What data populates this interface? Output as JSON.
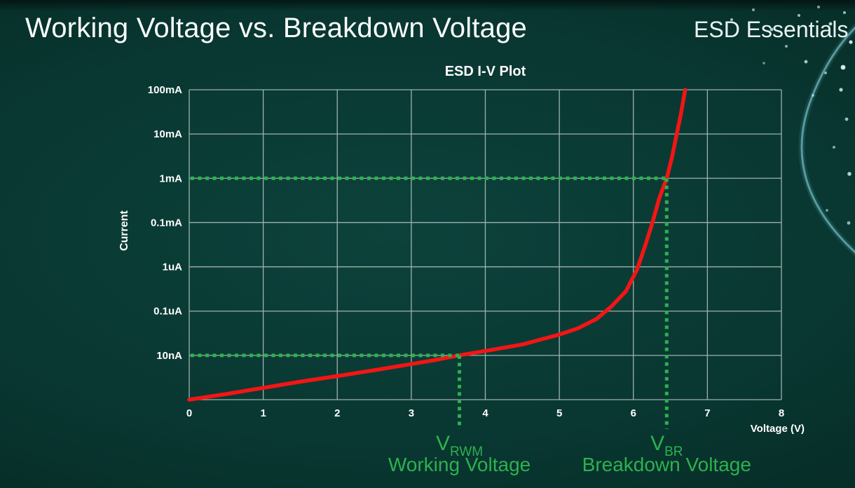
{
  "page": {
    "title": "Working Voltage vs. Breakdown Voltage",
    "brand": "ESD Essentials"
  },
  "colors": {
    "background": "#093731",
    "grid": "#c3d0ce",
    "curve_red": "#f31515",
    "annotation_green": "#2db14f",
    "text_white": "#ffffff"
  },
  "chart_data": {
    "type": "line",
    "title": "ESD I-V Plot",
    "xlabel": "Voltage (V)",
    "ylabel": "Current",
    "xlim": [
      0,
      8
    ],
    "x_ticks": [
      0,
      1,
      2,
      3,
      4,
      5,
      6,
      7,
      8
    ],
    "y_tick_labels": [
      "100mA",
      "10mA",
      "1mA",
      "0.1mA",
      "1uA",
      "0.1uA",
      "10nA"
    ],
    "yscale": "log decades equally spaced, bottom axis one decade below 10nA",
    "grid": true,
    "legend": "none",
    "series": [
      {
        "name": "ESD device I-V curve",
        "color": "#f31515",
        "points_note": "pairs of [voltage_V, fraction of plot height above bottom axis]",
        "points": [
          [
            0,
            0.0
          ],
          [
            0.5,
            0.018
          ],
          [
            1.0,
            0.038
          ],
          [
            1.5,
            0.058
          ],
          [
            2.0,
            0.076
          ],
          [
            2.5,
            0.095
          ],
          [
            3.0,
            0.115
          ],
          [
            3.3,
            0.127
          ],
          [
            3.65,
            0.143
          ],
          [
            4.0,
            0.157
          ],
          [
            4.5,
            0.178
          ],
          [
            5.0,
            0.21
          ],
          [
            5.25,
            0.23
          ],
          [
            5.5,
            0.26
          ],
          [
            5.7,
            0.3
          ],
          [
            5.9,
            0.35
          ],
          [
            6.05,
            0.42
          ],
          [
            6.15,
            0.49
          ],
          [
            6.25,
            0.565
          ],
          [
            6.35,
            0.65
          ],
          [
            6.45,
            0.714
          ],
          [
            6.52,
            0.78
          ],
          [
            6.58,
            0.85
          ],
          [
            6.64,
            0.92
          ],
          [
            6.7,
            1.0
          ]
        ]
      }
    ],
    "annotations": [
      {
        "id": "v_rwm",
        "voltage": 3.65,
        "current_label": "10nA",
        "level_frac": 0.1429,
        "label_main": "V",
        "label_sub": "RWM",
        "caption": "Working Voltage",
        "color": "#2db14f"
      },
      {
        "id": "v_br",
        "voltage": 6.45,
        "current_label": "1mA",
        "level_frac": 0.7143,
        "label_main": "V",
        "label_sub": "BR",
        "caption": "Breakdown Voltage",
        "color": "#2db14f"
      }
    ]
  }
}
